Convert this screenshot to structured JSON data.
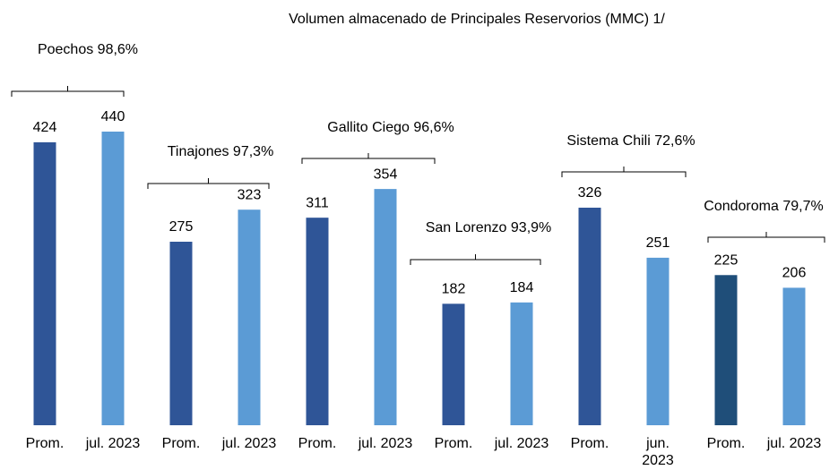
{
  "chart_data": {
    "type": "bar",
    "title": "Volumen almacenado  de Principales Reservorios   (MMC) 1/",
    "categories": [
      "Prom.",
      "jul. 2023",
      "Prom.",
      "jul. 2023",
      "Prom.",
      "jul. 2023",
      "Prom.",
      "jul. 2023",
      "Prom.",
      "jun. 2023",
      "Prom.",
      "jul. 2023"
    ],
    "values": [
      424,
      440,
      275,
      323,
      311,
      354,
      182,
      184,
      326,
      251,
      225,
      206
    ],
    "colors": [
      "#2F5597",
      "#5B9BD5",
      "#2F5597",
      "#5B9BD5",
      "#2F5597",
      "#5B9BD5",
      "#2F5597",
      "#5B9BD5",
      "#2F5597",
      "#5B9BD5",
      "#1F4E79",
      "#5B9BD5"
    ],
    "ylim": [
      0,
      440
    ],
    "groups": [
      "Poechos 98,6%",
      "Tinajones 97,3%",
      "Gallito Ciego 96,6%",
      "San Lorenzo 93,9%",
      "Sistema Chili 72,6%",
      "Condoroma 79,7%"
    ]
  }
}
